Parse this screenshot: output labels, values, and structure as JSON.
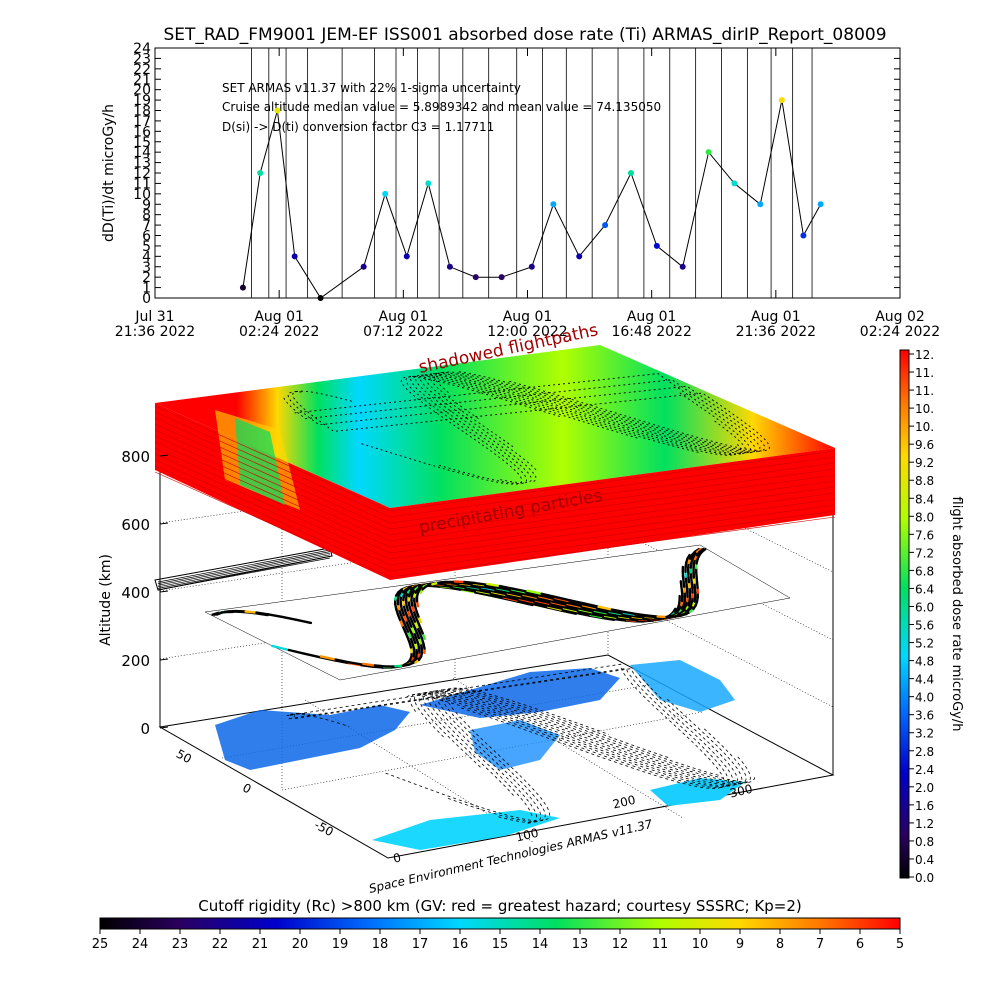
{
  "title": "SET_RAD_FM9001  JEM-EF ISS001 absorbed dose rate (Ti) ARMAS_dirIP_Report_08009",
  "credit": "Space Environment Technologies ARMAS v11.37",
  "colors": {
    "data_line": "#000000",
    "axis": "#000000",
    "background": "#ffffff",
    "shadow_red": "#ff0000"
  },
  "chart_data": [
    {
      "type": "line",
      "ylabel": "dD(Ti)/dt microGy/h",
      "xlabel": "",
      "ylim": [
        0,
        24
      ],
      "yticks": [
        0,
        1,
        2,
        3,
        4,
        5,
        6,
        7,
        8,
        9,
        10,
        11,
        12,
        13,
        14,
        15,
        16,
        17,
        18,
        19,
        20,
        21,
        22,
        23,
        24
      ],
      "xlim": [
        "Jul 31 2022 21:36",
        "Aug 02 2022 02:24"
      ],
      "xticks": [
        {
          "l1": "Jul 31",
          "l2": "21:36  2022"
        },
        {
          "l1": "Aug 01",
          "l2": "02:24  2022"
        },
        {
          "l1": "Aug 01",
          "l2": "07:12  2022"
        },
        {
          "l1": "Aug 01",
          "l2": "12:00  2022"
        },
        {
          "l1": "Aug 01",
          "l2": "16:48  2022"
        },
        {
          "l1": "Aug 01",
          "l2": "21:36  2022"
        },
        {
          "l1": "Aug 02",
          "l2": "02:24  2022"
        }
      ],
      "annotations": [
        "SET ARMAS v11.37 with 22% 1-sigma uncertainty",
        "Cruise altitude median value = 5.8989342 and mean value = 74.135050",
        "D(si) -> D(ti) conversion factor C3 = 1.17711"
      ],
      "series": [
        {
          "x": [
            "Aug 01 2022 01:00",
            "Aug 01 2022 01:40",
            "Aug 01 2022 02:20",
            "Aug 01 2022 03:00",
            "Aug 01 2022 04:00",
            "Aug 01 2022 05:40",
            "Aug 01 2022 06:30",
            "Aug 01 2022 07:20",
            "Aug 01 2022 08:10",
            "Aug 01 2022 09:00",
            "Aug 01 2022 10:00",
            "Aug 01 2022 11:00",
            "Aug 01 2022 12:10",
            "Aug 01 2022 13:00",
            "Aug 01 2022 14:00",
            "Aug 01 2022 15:00",
            "Aug 01 2022 16:00",
            "Aug 01 2022 17:00",
            "Aug 01 2022 18:00",
            "Aug 01 2022 19:00",
            "Aug 01 2022 20:00",
            "Aug 01 2022 21:00",
            "Aug 01 2022 21:50",
            "Aug 01 2022 22:40",
            "Aug 01 2022 23:20"
          ],
          "y": [
            1,
            12,
            18,
            4,
            0,
            3,
            10,
            4,
            11,
            3,
            2,
            2,
            3,
            9,
            4,
            7,
            12,
            5,
            3,
            14,
            11,
            9,
            19,
            6,
            9
          ]
        }
      ]
    },
    {
      "type": "heatmap",
      "ylabel": "Altitude (km)",
      "zticks": [
        "0",
        "200",
        "400",
        "600",
        "800"
      ],
      "lon_ticks": [
        "0",
        "100",
        "200",
        "300"
      ],
      "lat_ticks": [
        "-50",
        "0",
        "50"
      ],
      "labels": {
        "upper_layer": "shadowed flightpaths",
        "precipitating": "precipitating particles"
      }
    },
    {
      "type": "heatmap",
      "name": "colorbar-right",
      "label": "flight absorbed dose rate microGy/h",
      "ticks": [
        "12.",
        "11.",
        "11.",
        "10.",
        "10.",
        "9.6",
        "9.2",
        "8.8",
        "8.4",
        "8.0",
        "7.6",
        "7.2",
        "6.8",
        "6.4",
        "6.0",
        "5.6",
        "5.2",
        "4.8",
        "4.4",
        "4.0",
        "3.6",
        "3.2",
        "2.8",
        "2.4",
        "2.0",
        "1.6",
        "1.2",
        "0.8",
        "0.4",
        "0.0"
      ]
    },
    {
      "type": "heatmap",
      "name": "colorbar-bottom",
      "title": "Cutoff rigidity (Rc) >800 km (GV: red = greatest hazard; courtesy SSSRC; Kp=2)",
      "ticks": [
        "25",
        "24",
        "23",
        "22",
        "21",
        "20",
        "19",
        "18",
        "17",
        "16",
        "15",
        "14",
        "13",
        "12",
        "11",
        "10",
        "9",
        "8",
        "7",
        "6",
        "5"
      ]
    }
  ]
}
